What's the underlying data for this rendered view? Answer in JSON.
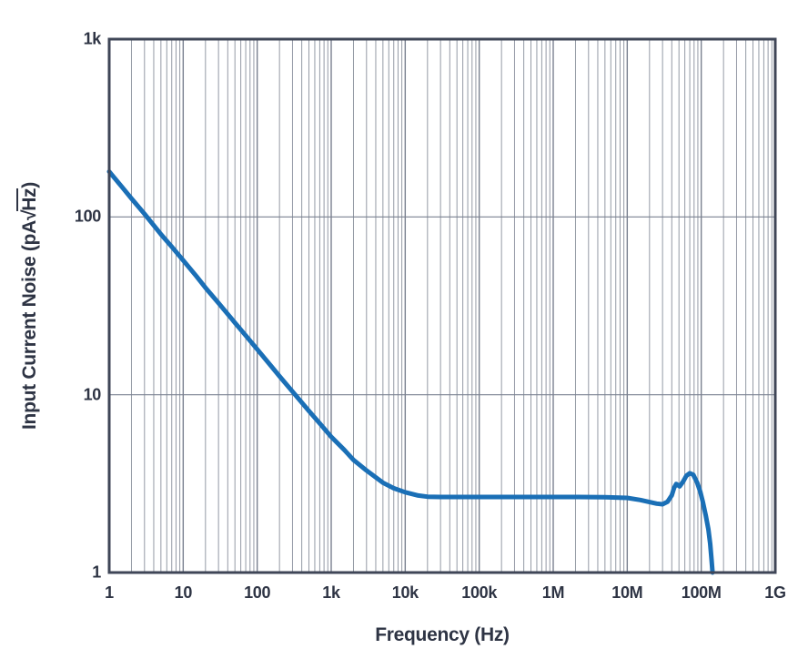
{
  "chart_data": {
    "type": "line",
    "x_scale": "log",
    "y_scale": "log",
    "x_range": [
      1,
      1000000000
    ],
    "y_range": [
      1,
      1000
    ],
    "grid": {
      "vertical_minor": true,
      "vertical_major": true,
      "horizontal_major": true,
      "horizontal_minor": false
    },
    "legend": "none",
    "xlabel": "Frequency (Hz)",
    "ylabel": "Input Current Noise (pA√Hz)",
    "ylabel_parts": {
      "prefix": "Input Current Noise (pA",
      "sqrt": "√",
      "overline": "Hz",
      "suffix": ")"
    },
    "x_ticks": [
      {
        "value": 1,
        "label": "1"
      },
      {
        "value": 10,
        "label": "10"
      },
      {
        "value": 100,
        "label": "100"
      },
      {
        "value": 1000,
        "label": "1k"
      },
      {
        "value": 10000,
        "label": "10k"
      },
      {
        "value": 100000,
        "label": "100k"
      },
      {
        "value": 1000000,
        "label": "1M"
      },
      {
        "value": 10000000,
        "label": "10M"
      },
      {
        "value": 100000000,
        "label": "100M"
      },
      {
        "value": 1000000000,
        "label": "1G"
      }
    ],
    "y_ticks": [
      {
        "value": 1,
        "label": "1"
      },
      {
        "value": 10,
        "label": "10"
      },
      {
        "value": 100,
        "label": "100"
      },
      {
        "value": 1000,
        "label": "1k"
      }
    ],
    "colors": {
      "curve": "#1a6fb6",
      "grid_minor": "#949aa5",
      "grid_major": "#7a8190",
      "border": "#3f4657",
      "text": "#2e3444",
      "background": "#ffffff"
    },
    "series": [
      {
        "name": "input-current-noise",
        "color": "#1a6fb6",
        "points": [
          [
            1,
            180
          ],
          [
            1.5,
            147
          ],
          [
            2,
            127
          ],
          [
            3,
            104
          ],
          [
            5,
            80
          ],
          [
            7,
            68
          ],
          [
            10,
            57
          ],
          [
            15,
            46.5
          ],
          [
            20,
            40
          ],
          [
            30,
            32.8
          ],
          [
            50,
            25.4
          ],
          [
            70,
            21.5
          ],
          [
            100,
            18
          ],
          [
            150,
            14.7
          ],
          [
            200,
            12.7
          ],
          [
            300,
            10.4
          ],
          [
            500,
            8.1
          ],
          [
            700,
            6.9
          ],
          [
            1000,
            5.8
          ],
          [
            1500,
            4.9
          ],
          [
            2000,
            4.3
          ],
          [
            3000,
            3.75
          ],
          [
            5000,
            3.2
          ],
          [
            7000,
            2.98
          ],
          [
            10000,
            2.83
          ],
          [
            15000,
            2.71
          ],
          [
            20000,
            2.67
          ],
          [
            30000,
            2.66
          ],
          [
            50000,
            2.66
          ],
          [
            100000,
            2.66
          ],
          [
            200000,
            2.66
          ],
          [
            500000,
            2.66
          ],
          [
            1000000,
            2.66
          ],
          [
            2000000,
            2.66
          ],
          [
            5000000,
            2.65
          ],
          [
            10000000,
            2.63
          ],
          [
            15000000,
            2.56
          ],
          [
            20000000,
            2.49
          ],
          [
            25000000,
            2.44
          ],
          [
            30000000,
            2.42
          ],
          [
            35000000,
            2.5
          ],
          [
            40000000,
            2.72
          ],
          [
            43000000,
            3.0
          ],
          [
            46000000,
            3.15
          ],
          [
            51000000,
            3.05
          ],
          [
            57000000,
            3.25
          ],
          [
            63000000,
            3.5
          ],
          [
            70000000,
            3.62
          ],
          [
            78000000,
            3.55
          ],
          [
            88000000,
            3.2
          ],
          [
            97000000,
            2.85
          ],
          [
            105000000,
            2.5
          ],
          [
            115000000,
            2.1
          ],
          [
            125000000,
            1.75
          ],
          [
            132000000,
            1.45
          ],
          [
            138000000,
            1.18
          ],
          [
            142000000,
            1.0
          ]
        ]
      }
    ]
  }
}
